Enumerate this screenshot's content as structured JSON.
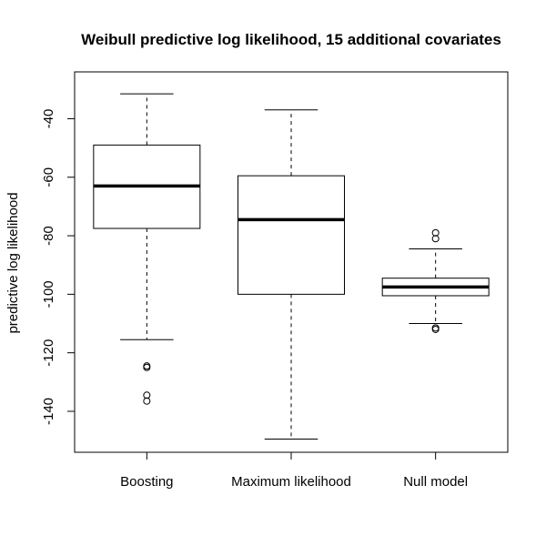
{
  "chart_data": {
    "type": "boxplot",
    "title": "Weibull predictive log likelihood, 15 additional covariates",
    "xlabel": "",
    "ylabel": "predictive log likelihood",
    "ylim": [
      -154,
      -24
    ],
    "yticks": [
      -40,
      -60,
      -80,
      -100,
      -120,
      -140
    ],
    "categories": [
      "Boosting",
      "Maximum likelihood",
      "Null model"
    ],
    "boxes": [
      {
        "name": "Boosting",
        "whisker_low": -115.5,
        "q1": -77.5,
        "median": -63,
        "q3": -49,
        "whisker_high": -31.5,
        "outliers": [
          -124.5,
          -125,
          -134.5,
          -136.5
        ]
      },
      {
        "name": "Maximum likelihood",
        "whisker_low": -149.5,
        "q1": -100,
        "median": -74.5,
        "q3": -59.5,
        "whisker_high": -37,
        "outliers": []
      },
      {
        "name": "Null model",
        "whisker_low": -110,
        "q1": -100.5,
        "median": -97.5,
        "q3": -94.5,
        "whisker_high": -84.5,
        "outliers": [
          -79,
          -81,
          -111.5,
          -112
        ]
      }
    ],
    "grid": false,
    "legend": "none"
  }
}
